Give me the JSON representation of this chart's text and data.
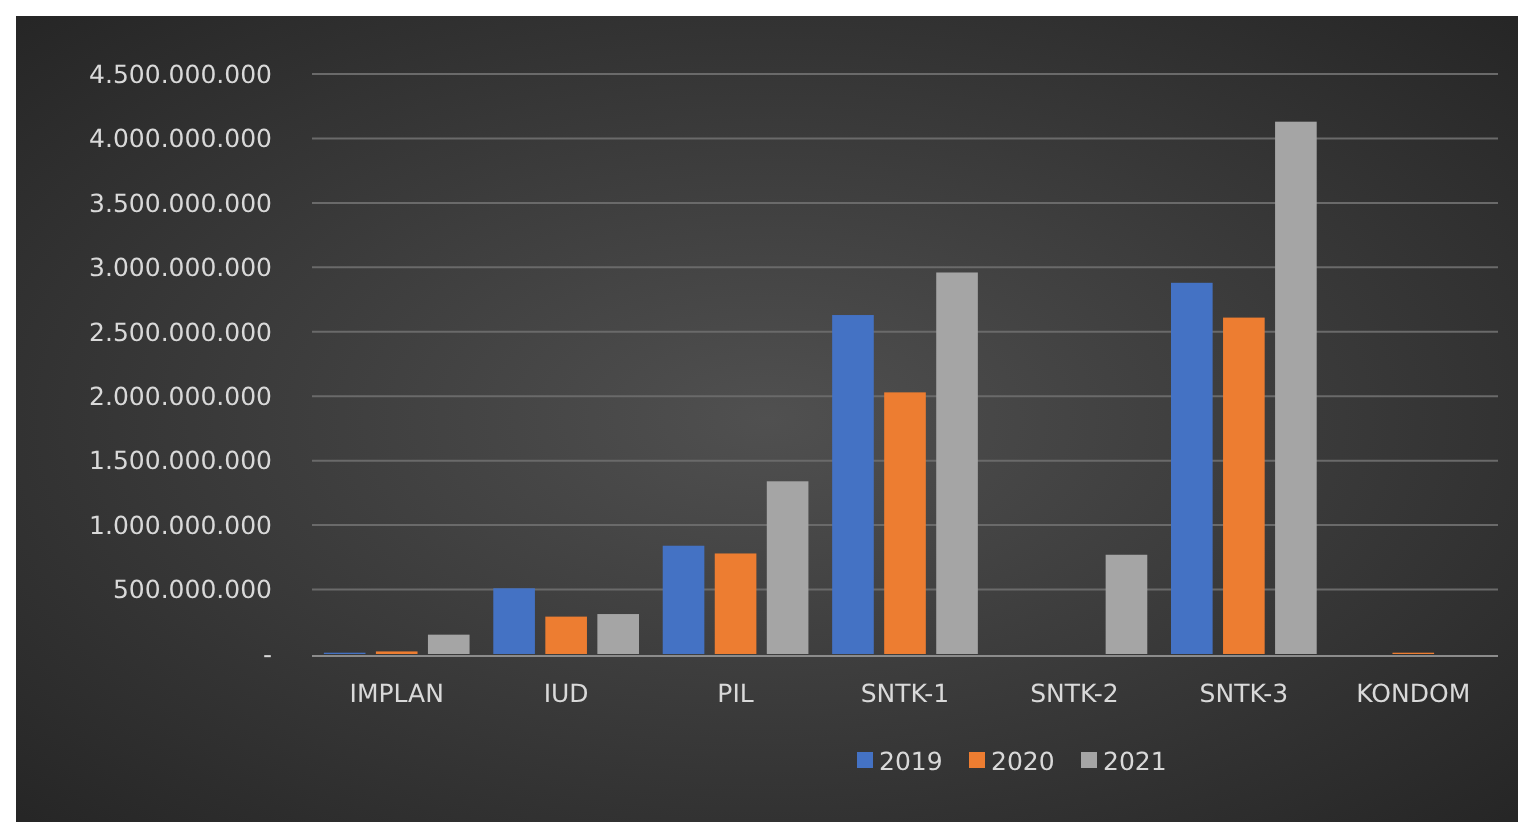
{
  "chart_data": {
    "type": "bar",
    "categories": [
      "IMPLAN",
      "IUD",
      "PIL",
      "SNTK-1",
      "SNTK-2",
      "SNTK-3",
      "KONDOM"
    ],
    "series": [
      {
        "name": "2019",
        "color": "#4472c4",
        "values": [
          10000000,
          510000000,
          840000000,
          2630000000,
          0,
          2880000000,
          0
        ]
      },
      {
        "name": "2020",
        "color": "#ed7d31",
        "values": [
          20000000,
          290000000,
          780000000,
          2030000000,
          0,
          2610000000,
          10000000
        ]
      },
      {
        "name": "2021",
        "color": "#a5a5a5",
        "values": [
          150000000,
          310000000,
          1340000000,
          2960000000,
          770000000,
          4130000000,
          0
        ]
      }
    ],
    "ylim": [
      0,
      4500000000
    ],
    "yticks": [
      {
        "value": 0,
        "label": "-"
      },
      {
        "value": 500000000,
        "label": "500.000.000"
      },
      {
        "value": 1000000000,
        "label": "1.000.000.000"
      },
      {
        "value": 1500000000,
        "label": "1.500.000.000"
      },
      {
        "value": 2000000000,
        "label": "2.000.000.000"
      },
      {
        "value": 2500000000,
        "label": "2.500.000.000"
      },
      {
        "value": 3000000000,
        "label": "3.000.000.000"
      },
      {
        "value": 3500000000,
        "label": "3.500.000.000"
      },
      {
        "value": 4000000000,
        "label": "4.000.000.000"
      },
      {
        "value": 4500000000,
        "label": "4.500.000.000"
      }
    ],
    "grid": "y",
    "legend": "bottom"
  }
}
